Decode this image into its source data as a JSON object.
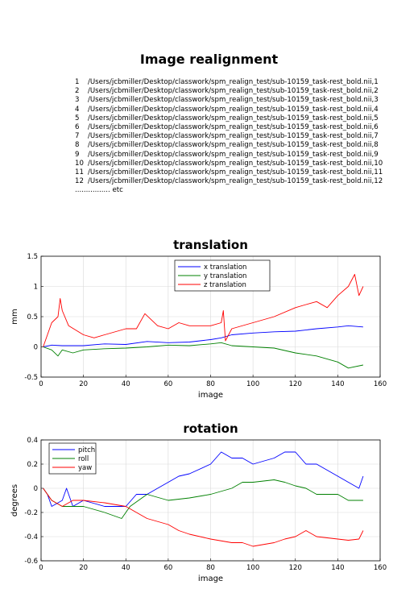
{
  "title": "Image realignment",
  "file_list": [
    {
      "n": "1",
      "path": "/Users/jcbmiller/Desktop/classwork/spm_realign_test/sub-10159_task-rest_bold.nii,1"
    },
    {
      "n": "2",
      "path": "/Users/jcbmiller/Desktop/classwork/spm_realign_test/sub-10159_task-rest_bold.nii,2"
    },
    {
      "n": "3",
      "path": "/Users/jcbmiller/Desktop/classwork/spm_realign_test/sub-10159_task-rest_bold.nii,3"
    },
    {
      "n": "4",
      "path": "/Users/jcbmiller/Desktop/classwork/spm_realign_test/sub-10159_task-rest_bold.nii,4"
    },
    {
      "n": "5",
      "path": "/Users/jcbmiller/Desktop/classwork/spm_realign_test/sub-10159_task-rest_bold.nii,5"
    },
    {
      "n": "6",
      "path": "/Users/jcbmiller/Desktop/classwork/spm_realign_test/sub-10159_task-rest_bold.nii,6"
    },
    {
      "n": "7",
      "path": "/Users/jcbmiller/Desktop/classwork/spm_realign_test/sub-10159_task-rest_bold.nii,7"
    },
    {
      "n": "8",
      "path": "/Users/jcbmiller/Desktop/classwork/spm_realign_test/sub-10159_task-rest_bold.nii,8"
    },
    {
      "n": "9",
      "path": "/Users/jcbmiller/Desktop/classwork/spm_realign_test/sub-10159_task-rest_bold.nii,9"
    },
    {
      "n": "10",
      "path": "/Users/jcbmiller/Desktop/classwork/spm_realign_test/sub-10159_task-rest_bold.nii,10"
    },
    {
      "n": "11",
      "path": "/Users/jcbmiller/Desktop/classwork/spm_realign_test/sub-10159_task-rest_bold.nii,11"
    },
    {
      "n": "12",
      "path": "/Users/jcbmiller/Desktop/classwork/spm_realign_test/sub-10159_task-rest_bold.nii,12"
    }
  ],
  "etc_text": "................ etc",
  "chart_data": [
    {
      "type": "line",
      "title": "translation",
      "xlabel": "image",
      "ylabel": "mm",
      "xlim": [
        0,
        160
      ],
      "ylim": [
        -0.5,
        1.5
      ],
      "xticks": [
        0,
        20,
        40,
        60,
        80,
        100,
        120,
        140,
        160
      ],
      "yticks": [
        -0.5,
        0,
        0.5,
        1,
        1.5
      ],
      "grid": true,
      "legend": "top-center",
      "series": [
        {
          "name": "x translation",
          "color": "#0000ff",
          "points": [
            [
              1,
              0
            ],
            [
              5,
              0.03
            ],
            [
              10,
              0.02
            ],
            [
              20,
              0.02
            ],
            [
              30,
              0.05
            ],
            [
              40,
              0.04
            ],
            [
              50,
              0.09
            ],
            [
              60,
              0.07
            ],
            [
              70,
              0.08
            ],
            [
              80,
              0.12
            ],
            [
              85,
              0.15
            ],
            [
              90,
              0.2
            ],
            [
              100,
              0.23
            ],
            [
              110,
              0.25
            ],
            [
              120,
              0.26
            ],
            [
              130,
              0.3
            ],
            [
              140,
              0.33
            ],
            [
              145,
              0.35
            ],
            [
              152,
              0.33
            ]
          ]
        },
        {
          "name": "y translation",
          "color": "#008000",
          "points": [
            [
              1,
              0
            ],
            [
              5,
              -0.05
            ],
            [
              8,
              -0.15
            ],
            [
              10,
              -0.05
            ],
            [
              15,
              -0.1
            ],
            [
              20,
              -0.05
            ],
            [
              30,
              -0.03
            ],
            [
              40,
              -0.02
            ],
            [
              50,
              0
            ],
            [
              60,
              0.03
            ],
            [
              70,
              0.02
            ],
            [
              80,
              0.05
            ],
            [
              85,
              0.07
            ],
            [
              90,
              0.02
            ],
            [
              100,
              0
            ],
            [
              110,
              -0.02
            ],
            [
              120,
              -0.1
            ],
            [
              130,
              -0.15
            ],
            [
              140,
              -0.25
            ],
            [
              145,
              -0.35
            ],
            [
              152,
              -0.3
            ]
          ]
        },
        {
          "name": "z translation",
          "color": "#ff0000",
          "points": [
            [
              1,
              0
            ],
            [
              3,
              0.2
            ],
            [
              5,
              0.4
            ],
            [
              8,
              0.5
            ],
            [
              9,
              0.8
            ],
            [
              10,
              0.6
            ],
            [
              13,
              0.35
            ],
            [
              20,
              0.2
            ],
            [
              25,
              0.15
            ],
            [
              30,
              0.2
            ],
            [
              40,
              0.3
            ],
            [
              45,
              0.3
            ],
            [
              49,
              0.55
            ],
            [
              55,
              0.35
            ],
            [
              60,
              0.3
            ],
            [
              65,
              0.4
            ],
            [
              70,
              0.35
            ],
            [
              80,
              0.35
            ],
            [
              85,
              0.4
            ],
            [
              86,
              0.6
            ],
            [
              87,
              0.1
            ],
            [
              90,
              0.3
            ],
            [
              100,
              0.4
            ],
            [
              110,
              0.5
            ],
            [
              120,
              0.65
            ],
            [
              125,
              0.7
            ],
            [
              130,
              0.75
            ],
            [
              135,
              0.65
            ],
            [
              140,
              0.85
            ],
            [
              145,
              1.0
            ],
            [
              148,
              1.2
            ],
            [
              150,
              0.85
            ],
            [
              152,
              1.0
            ]
          ]
        }
      ]
    },
    {
      "type": "line",
      "title": "rotation",
      "xlabel": "image",
      "ylabel": "degrees",
      "xlim": [
        0,
        160
      ],
      "ylim": [
        -0.6,
        0.4
      ],
      "xticks": [
        0,
        20,
        40,
        60,
        80,
        100,
        120,
        140,
        160
      ],
      "yticks": [
        -0.6,
        -0.4,
        -0.2,
        0,
        0.2,
        0.4
      ],
      "grid": true,
      "legend": "top-left",
      "series": [
        {
          "name": "pitch",
          "color": "#0000ff",
          "points": [
            [
              1,
              0
            ],
            [
              3,
              -0.05
            ],
            [
              5,
              -0.15
            ],
            [
              10,
              -0.1
            ],
            [
              12,
              0
            ],
            [
              15,
              -0.15
            ],
            [
              20,
              -0.1
            ],
            [
              30,
              -0.15
            ],
            [
              40,
              -0.15
            ],
            [
              45,
              -0.05
            ],
            [
              50,
              -0.05
            ],
            [
              55,
              0
            ],
            [
              60,
              0.05
            ],
            [
              65,
              0.1
            ],
            [
              70,
              0.12
            ],
            [
              80,
              0.2
            ],
            [
              85,
              0.3
            ],
            [
              90,
              0.25
            ],
            [
              95,
              0.25
            ],
            [
              100,
              0.2
            ],
            [
              110,
              0.25
            ],
            [
              115,
              0.3
            ],
            [
              120,
              0.3
            ],
            [
              125,
              0.2
            ],
            [
              130,
              0.2
            ],
            [
              140,
              0.1
            ],
            [
              145,
              0.05
            ],
            [
              150,
              0
            ],
            [
              152,
              0.1
            ]
          ]
        },
        {
          "name": "roll",
          "color": "#008000",
          "points": [
            [
              1,
              0
            ],
            [
              5,
              -0.1
            ],
            [
              10,
              -0.15
            ],
            [
              20,
              -0.15
            ],
            [
              30,
              -0.2
            ],
            [
              38,
              -0.25
            ],
            [
              42,
              -0.15
            ],
            [
              50,
              -0.05
            ],
            [
              60,
              -0.1
            ],
            [
              70,
              -0.08
            ],
            [
              80,
              -0.05
            ],
            [
              90,
              0
            ],
            [
              95,
              0.05
            ],
            [
              100,
              0.05
            ],
            [
              110,
              0.07
            ],
            [
              115,
              0.05
            ],
            [
              120,
              0.02
            ],
            [
              125,
              0
            ],
            [
              130,
              -0.05
            ],
            [
              140,
              -0.05
            ],
            [
              145,
              -0.1
            ],
            [
              152,
              -0.1
            ]
          ]
        },
        {
          "name": "yaw",
          "color": "#ff0000",
          "points": [
            [
              1,
              0
            ],
            [
              5,
              -0.1
            ],
            [
              10,
              -0.15
            ],
            [
              15,
              -0.1
            ],
            [
              20,
              -0.1
            ],
            [
              30,
              -0.12
            ],
            [
              40,
              -0.15
            ],
            [
              45,
              -0.2
            ],
            [
              50,
              -0.25
            ],
            [
              60,
              -0.3
            ],
            [
              65,
              -0.35
            ],
            [
              70,
              -0.38
            ],
            [
              80,
              -0.42
            ],
            [
              90,
              -0.45
            ],
            [
              95,
              -0.45
            ],
            [
              100,
              -0.48
            ],
            [
              110,
              -0.45
            ],
            [
              115,
              -0.42
            ],
            [
              120,
              -0.4
            ],
            [
              125,
              -0.35
            ],
            [
              130,
              -0.4
            ],
            [
              140,
              -0.42
            ],
            [
              145,
              -0.43
            ],
            [
              150,
              -0.42
            ],
            [
              152,
              -0.35
            ]
          ]
        }
      ]
    }
  ]
}
